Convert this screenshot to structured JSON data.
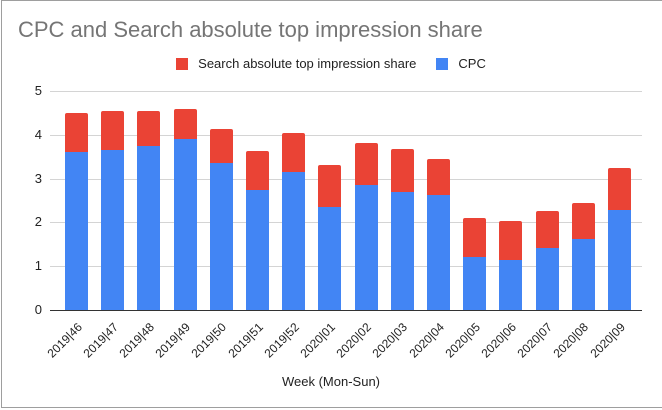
{
  "chart_data": {
    "type": "bar",
    "stacked": true,
    "title": "CPC and Search absolute top impression share",
    "xlabel": "Week (Mon-Sun)",
    "ylabel": "",
    "ylim": [
      0,
      5
    ],
    "yticks": [
      0,
      1,
      2,
      3,
      4,
      5
    ],
    "grid": true,
    "legend_position": "top",
    "categories": [
      "2019|46",
      "2019|47",
      "2019|48",
      "2019|49",
      "2019|50",
      "2019|51",
      "2019|52",
      "2020|01",
      "2020|02",
      "2020|03",
      "2020|04",
      "2020|05",
      "2020|06",
      "2020|07",
      "2020|08",
      "2020|09"
    ],
    "series": [
      {
        "name": "CPC",
        "color": "#4285f4",
        "values": [
          3.6,
          3.65,
          3.75,
          3.9,
          3.35,
          2.73,
          3.15,
          2.35,
          2.85,
          2.7,
          2.63,
          1.2,
          1.15,
          1.41,
          1.63,
          2.28
        ]
      },
      {
        "name": "Search absolute top impression share",
        "color": "#ea4335",
        "values": [
          0.89,
          0.9,
          0.8,
          0.7,
          0.79,
          0.89,
          0.9,
          0.95,
          0.97,
          0.97,
          0.81,
          0.9,
          0.89,
          0.86,
          0.82,
          0.97
        ]
      }
    ]
  },
  "legend": [
    {
      "label": "Search absolute top impression share",
      "color": "#ea4335"
    },
    {
      "label": "CPC",
      "color": "#4285f4"
    }
  ]
}
